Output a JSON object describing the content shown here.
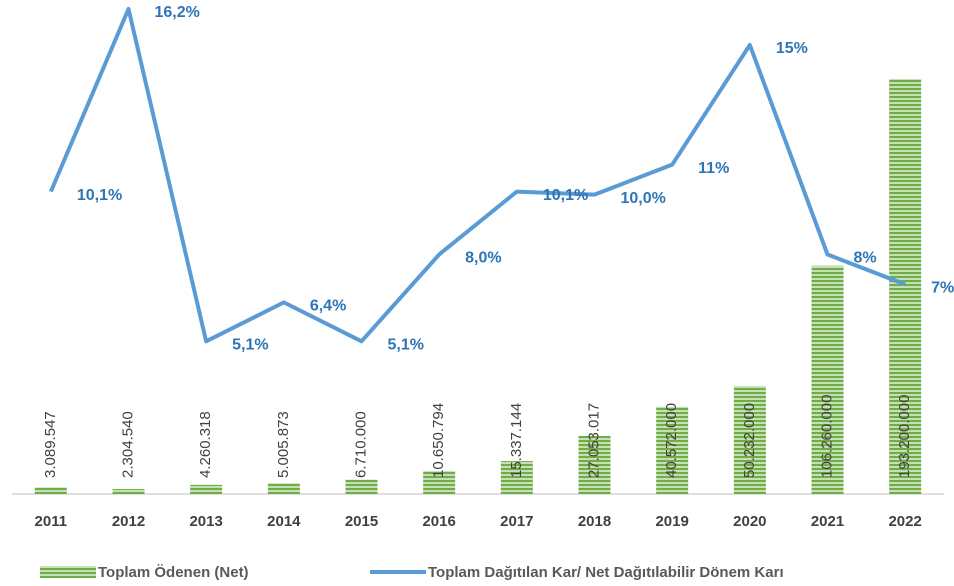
{
  "chart_data": {
    "type": "bar-line",
    "categories": [
      "2011",
      "2012",
      "2013",
      "2014",
      "2015",
      "2016",
      "2017",
      "2018",
      "2019",
      "2020",
      "2021",
      "2022"
    ],
    "series": [
      {
        "name": "Toplam Ödenen (Net)",
        "type": "bar",
        "color": "#70ad47",
        "values": [
          3089547,
          2304540,
          4260318,
          5005873,
          6710000,
          10650794,
          15337144,
          27053017,
          40572000,
          50232000,
          106260000,
          193200000
        ],
        "value_labels": [
          "3.089.547",
          "2.304.540",
          "4.260.318",
          "5.005.873",
          "6.710.000",
          "10.650.794",
          "15.337.144",
          "27.053.017",
          "40.572.000",
          "50.232.000",
          "106.260.000",
          "193.200.000"
        ]
      },
      {
        "name": "Toplam Dağıtılan Kar/ Net Dağıtılabilir Dönem Karı",
        "type": "line",
        "axis": "y2",
        "color": "#5b9bd5",
        "values": [
          10.1,
          16.2,
          5.1,
          6.4,
          5.1,
          8.0,
          10.1,
          10.0,
          11,
          15,
          8,
          7
        ],
        "value_labels": [
          "10,1%",
          "16,2%",
          "5,1%",
          "6,4%",
          "5,1%",
          "8,0%",
          "10,1%",
          "10,0%",
          "11%",
          "15%",
          "8%",
          "7%"
        ]
      }
    ],
    "ylim": [
      0,
      230000000
    ],
    "y2lim": [
      0,
      16.5
    ],
    "legend": "bottom"
  }
}
